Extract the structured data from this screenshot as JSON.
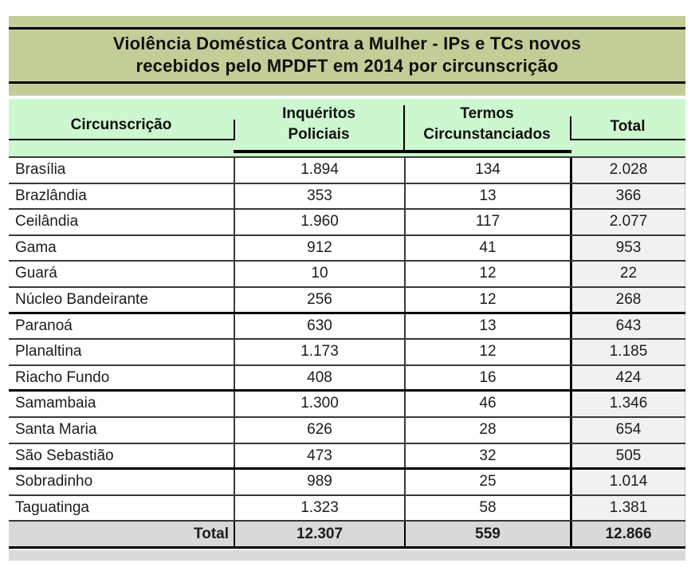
{
  "document": {
    "title_line1": "Violência Doméstica Contra a Mulher - IPs e TCs novos",
    "title_line2": "recebidos pelo MPDFT em 2014 por circunscrição"
  },
  "table": {
    "headers": {
      "circunscricao": "Circunscrição",
      "inqueritos": "Inquéritos\nPoliciais",
      "termos": "Termos\nCircunstanciados",
      "total": "Total"
    },
    "rows": [
      {
        "name": "Brasília",
        "ip": "1.894",
        "tc": "134",
        "total": "2.028",
        "thick_bottom": false
      },
      {
        "name": "Brazlândia",
        "ip": "353",
        "tc": "13",
        "total": "366",
        "thick_bottom": false
      },
      {
        "name": "Ceilândia",
        "ip": "1.960",
        "tc": "117",
        "total": "2.077",
        "thick_bottom": false
      },
      {
        "name": "Gama",
        "ip": "912",
        "tc": "41",
        "total": "953",
        "thick_bottom": false
      },
      {
        "name": "Guará",
        "ip": "10",
        "tc": "12",
        "total": "22",
        "thick_bottom": false
      },
      {
        "name": "Núcleo Bandeirante",
        "ip": "256",
        "tc": "12",
        "total": "268",
        "thick_bottom": true
      },
      {
        "name": "Paranoá",
        "ip": "630",
        "tc": "13",
        "total": "643",
        "thick_bottom": false
      },
      {
        "name": "Planaltina",
        "ip": "1.173",
        "tc": "12",
        "total": "1.185",
        "thick_bottom": false
      },
      {
        "name": "Riacho Fundo",
        "ip": "408",
        "tc": "16",
        "total": "424",
        "thick_bottom": true
      },
      {
        "name": "Samambaia",
        "ip": "1.300",
        "tc": "46",
        "total": "1.346",
        "thick_bottom": false
      },
      {
        "name": "Santa Maria",
        "ip": "626",
        "tc": "28",
        "total": "654",
        "thick_bottom": false
      },
      {
        "name": "São Sebastião",
        "ip": "473",
        "tc": "32",
        "total": "505",
        "thick_bottom": true
      },
      {
        "name": "Sobradinho",
        "ip": "989",
        "tc": "25",
        "total": "1.014",
        "thick_bottom": false
      },
      {
        "name": "Taguatinga",
        "ip": "1.323",
        "tc": "58",
        "total": "1.381",
        "thick_bottom": false
      }
    ],
    "footer": {
      "label": "Total",
      "ip": "12.307",
      "tc": "559",
      "total": "12.866"
    }
  },
  "colors": {
    "olive_band": "#C3CD97",
    "header_green": "#CDF7CE",
    "total_column_gray": "#F1F1F1",
    "total_row_gray": "#D9D9D9",
    "bottom_strip_gray": "#DBDBDB",
    "line_black": "#000000"
  },
  "chart_data": {
    "type": "table",
    "title": "Violência Doméstica Contra a Mulher - IPs e TCs novos recebidos pelo MPDFT em 2014 por circunscrição",
    "columns": [
      "Circunscrição",
      "Inquéritos Policiais",
      "Termos Circunstanciados",
      "Total"
    ],
    "rows": [
      [
        "Brasília",
        1894,
        134,
        2028
      ],
      [
        "Brazlândia",
        353,
        13,
        366
      ],
      [
        "Ceilândia",
        1960,
        117,
        2077
      ],
      [
        "Gama",
        912,
        41,
        953
      ],
      [
        "Guará",
        10,
        12,
        22
      ],
      [
        "Núcleo Bandeirante",
        256,
        12,
        268
      ],
      [
        "Paranoá",
        630,
        13,
        643
      ],
      [
        "Planaltina",
        1173,
        12,
        1185
      ],
      [
        "Riacho Fundo",
        408,
        16,
        424
      ],
      [
        "Samambaia",
        1300,
        46,
        1346
      ],
      [
        "Santa Maria",
        626,
        28,
        654
      ],
      [
        "São Sebastião",
        473,
        32,
        505
      ],
      [
        "Sobradinho",
        989,
        25,
        1014
      ],
      [
        "Taguatinga",
        1323,
        58,
        1381
      ]
    ],
    "totals": [
      "Total",
      12307,
      559,
      12866
    ]
  }
}
